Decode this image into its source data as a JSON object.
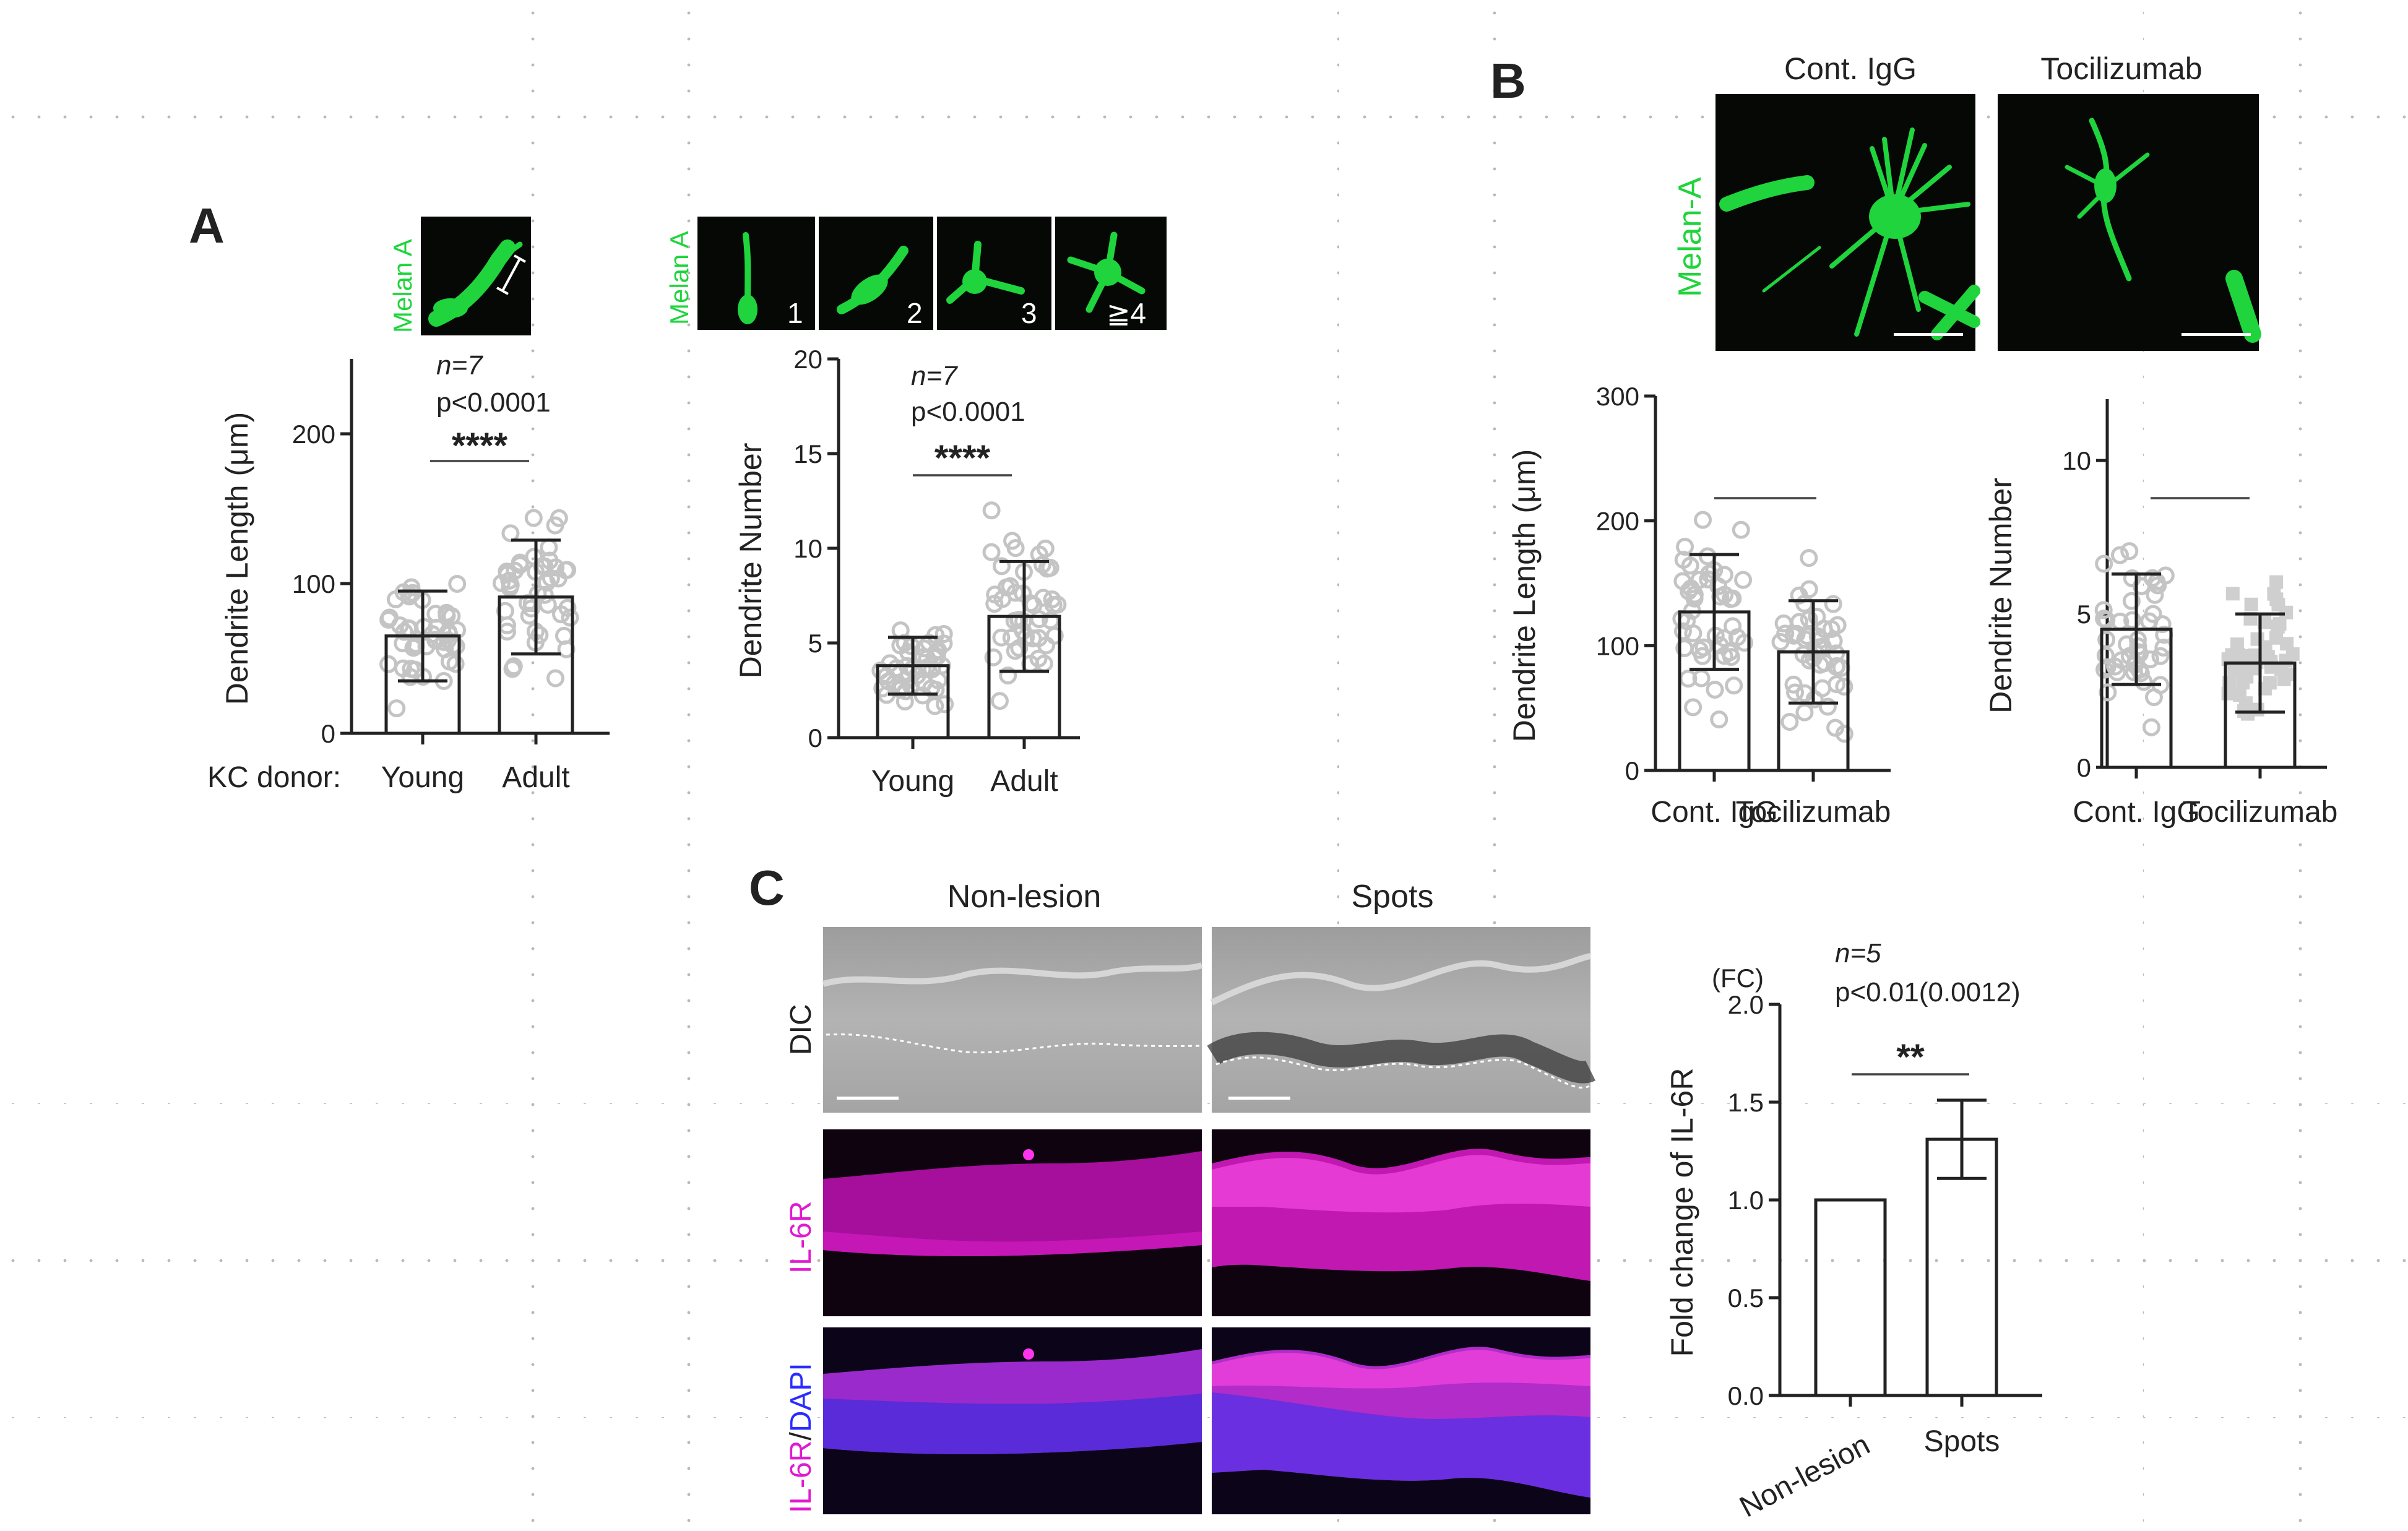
{
  "colors": {
    "melan_green": "#1fd43c",
    "il6r_magenta": "#e01ad0",
    "dapi_blue": "#2a2cff",
    "micro_bg": "#050805",
    "fluor_bg": "#0f0310",
    "bar_stroke": "#222222",
    "dot_fill": "#c9c9c9",
    "grid_dot": "#b5b5b5"
  },
  "panels": {
    "A": {
      "letter": "A",
      "stain_label_1": "Melan A",
      "stain_label_2": "Melan A",
      "count_labels": [
        "1",
        "2",
        "3",
        "≧4"
      ],
      "kc_donor_label": "KC donor:"
    },
    "B": {
      "letter": "B",
      "col_titles": [
        "Cont. IgG",
        "Tocilizumab"
      ],
      "stain_label": "Melan-A"
    },
    "C": {
      "letter": "C",
      "col_titles": [
        "Non-lesion",
        "Spots"
      ],
      "row_labels": {
        "dic": "DIC",
        "il6r": "IL-6R",
        "merge_a": "IL-6R",
        "merge_sep": "/",
        "merge_b": "DAPI"
      }
    }
  },
  "chart_data": [
    {
      "id": "A-length",
      "type": "bar",
      "categories": [
        "Young",
        "Adult"
      ],
      "values": [
        65,
        91
      ],
      "error_sd": [
        30,
        38
      ],
      "ylabel": "Dendrite Length (μm)",
      "ylim": [
        0,
        250
      ],
      "yticks": [
        0,
        100,
        200
      ],
      "annotation": {
        "n": "n=7",
        "p": "p<0.0001",
        "sig": "****"
      }
    },
    {
      "id": "A-number",
      "type": "bar",
      "categories": [
        "Young",
        "Adult"
      ],
      "values": [
        3.8,
        6.4
      ],
      "error_sd": [
        1.5,
        2.9
      ],
      "ylabel": "Dendrite Number",
      "ylim": [
        0,
        20
      ],
      "yticks": [
        0,
        5,
        10,
        15,
        20
      ],
      "annotation": {
        "n": "n=7",
        "p": "p<0.0001",
        "sig": "****"
      }
    },
    {
      "id": "B-length",
      "type": "bar",
      "categories": [
        "Cont. IgG",
        "Tocilizumab"
      ],
      "values": [
        127,
        95
      ],
      "error_sd": [
        46,
        41
      ],
      "ylabel": "Dendrite Length (μm)",
      "ylim": [
        0,
        300
      ],
      "yticks": [
        0,
        100,
        200,
        300
      ],
      "annotation": {
        "n": "",
        "p": "",
        "sig": ""
      }
    },
    {
      "id": "B-number",
      "type": "bar",
      "categories": [
        "Cont. IgG",
        "Tocilizumab"
      ],
      "values": [
        4.5,
        3.4
      ],
      "error_sd": [
        1.8,
        1.6
      ],
      "ylabel": "Dendrite Number",
      "ylim": [
        0,
        12
      ],
      "yticks": [
        0,
        5,
        10
      ],
      "annotation": {
        "n": "",
        "p": "",
        "sig": ""
      }
    },
    {
      "id": "C-fold",
      "type": "bar",
      "categories": [
        "Non-lesion",
        "Spots"
      ],
      "values": [
        1.0,
        1.31
      ],
      "error_sd": [
        0,
        0.2
      ],
      "ylabel": "Fold change of IL-6R",
      "unit_label": "(FC)",
      "ylim": [
        0,
        2.0
      ],
      "yticks": [
        0.0,
        0.5,
        1.0,
        1.5,
        2.0
      ],
      "annotation": {
        "n": "n=5",
        "p": "p<0.01(0.0012)",
        "sig": "**"
      }
    }
  ]
}
